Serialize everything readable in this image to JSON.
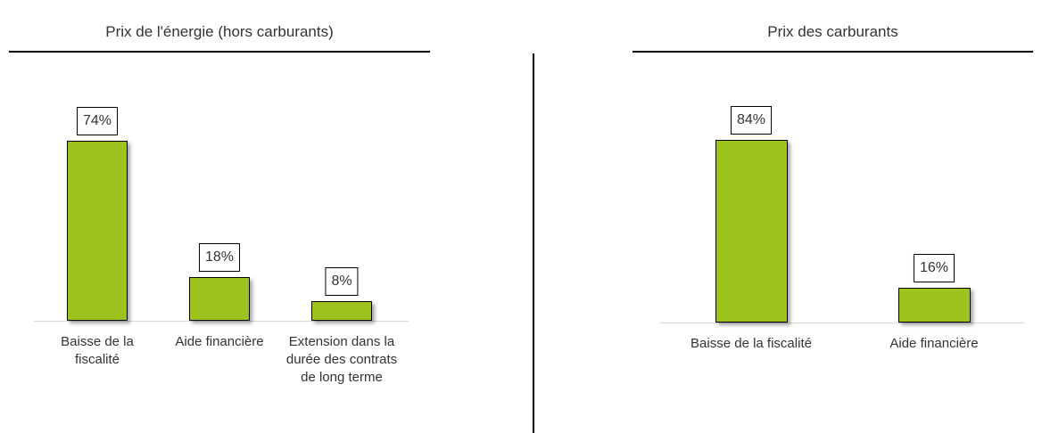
{
  "chart_data": [
    {
      "type": "bar",
      "title": "Prix de l'énergie (hors carburants)",
      "categories": [
        "Baisse de la fiscalité",
        "Aide financière",
        "Extension dans la durée des contrats de long terme"
      ],
      "values": [
        74,
        18,
        8
      ],
      "value_labels": [
        "74%",
        "18%",
        "8%"
      ],
      "color": "#9dc31c"
    },
    {
      "type": "bar",
      "title": "Prix des carburants",
      "categories": [
        "Baisse de la fiscalité",
        "Aide financière"
      ],
      "values": [
        84,
        16
      ],
      "value_labels": [
        "84%",
        "16%"
      ],
      "color": "#9dc31c"
    }
  ]
}
